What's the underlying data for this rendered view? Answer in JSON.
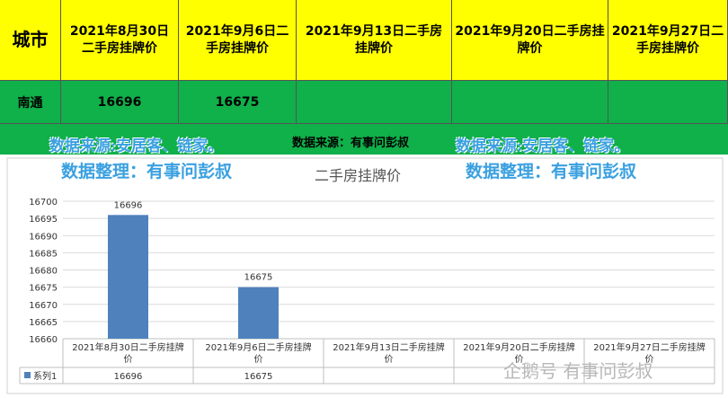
{
  "table": {
    "city_header": "城市",
    "date_headers": [
      "2021年8月30日二手房挂牌价",
      "2021年9月6日二手房挂牌价",
      "2021年9月13日二手房挂牌价",
      "2021年9月20日二手房挂牌价",
      "2021年9月27日二手房挂牌价"
    ],
    "rows": [
      {
        "city": "南通",
        "values": [
          "16696",
          "16675",
          "",
          "",
          ""
        ]
      }
    ]
  },
  "source_center": "数据来源：有事问彭叔",
  "watermarks": {
    "source_left": "数据来源:安居客、链家。",
    "source_right": "数据来源:安居客、链家。",
    "org_left": "数据整理：有事问彭叔",
    "org_right": "数据整理：有事问彭叔"
  },
  "footer_watermark": "企鹅号 有事问彭叔",
  "chart_data": {
    "type": "bar",
    "title": "二手房挂牌价",
    "categories": [
      "2021年8月30日二手房挂牌价",
      "2021年9月6日二手房挂牌价",
      "2021年9月13日二手房挂牌价",
      "2021年9月20日二手房挂牌价",
      "2021年9月27日二手房挂牌价"
    ],
    "series": [
      {
        "name": "系列1",
        "values": [
          16696,
          16675,
          null,
          null,
          null
        ]
      }
    ],
    "ylim": [
      16660,
      16700
    ],
    "yticks": [
      16660,
      16665,
      16670,
      16675,
      16680,
      16685,
      16690,
      16695,
      16700
    ],
    "grid": true,
    "data_table": true,
    "colors": {
      "bar": "#4f81bd",
      "header": "#ffff00",
      "row": "#10b04a",
      "watermark": "#3aa0e0"
    }
  }
}
